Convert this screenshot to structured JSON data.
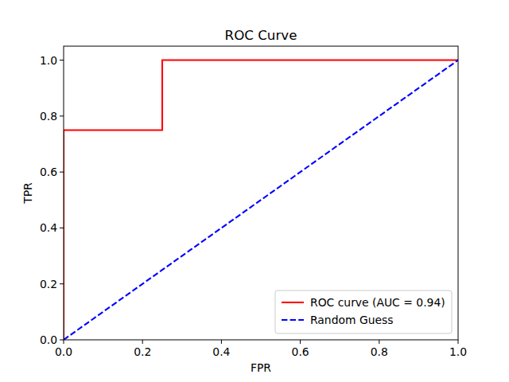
{
  "chart_data": {
    "type": "line",
    "title": "ROC Curve",
    "x_label": "FPR",
    "y_label": "TPR",
    "series": [
      {
        "name": "ROC curve (AUC = 0.94)",
        "color": "#ff0000",
        "line_style": "solid",
        "x": [
          0,
          0,
          0.25,
          0.25,
          1
        ],
        "values": [
          0,
          0.75,
          0.75,
          1,
          1
        ]
      },
      {
        "name": "Random Guess",
        "color": "#0000ff",
        "line_style": "dashed",
        "x": [
          0,
          1
        ],
        "values": [
          0,
          1
        ]
      }
    ],
    "xlim": [
      0,
      1
    ],
    "ylim": [
      0,
      1.05
    ],
    "xticks": [
      {
        "value": 0,
        "label": "0.0"
      },
      0.2,
      0.4,
      0.6,
      0.8,
      {
        "value": 1,
        "label": "1.0"
      }
    ],
    "yticks": [
      {
        "value": 0,
        "label": "0.0"
      },
      0.2,
      0.4,
      0.6,
      0.8,
      {
        "value": 1,
        "label": "1.0"
      }
    ],
    "legend": "lower right",
    "grid": false
  }
}
